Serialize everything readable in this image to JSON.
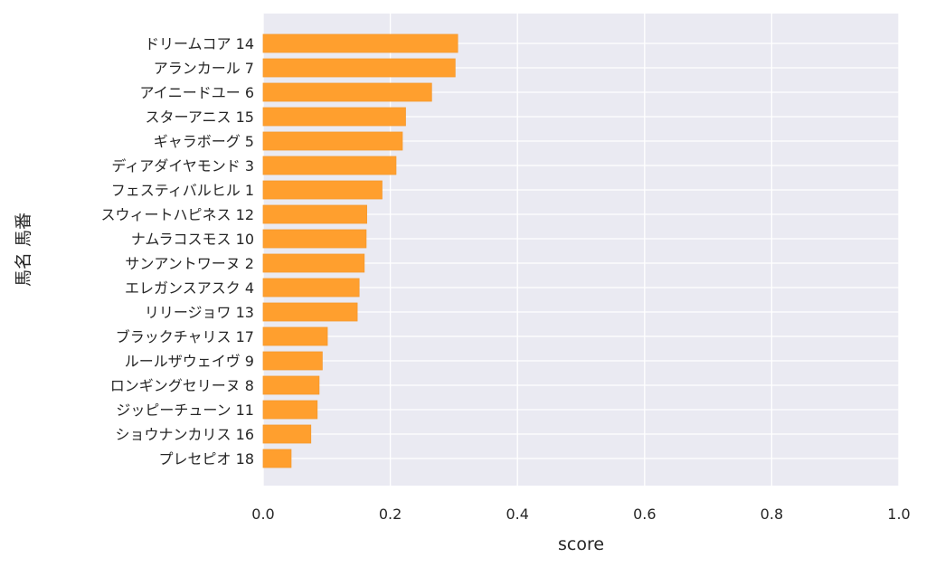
{
  "chart_data": {
    "type": "bar",
    "orientation": "horizontal",
    "categories": [
      "ドリームコア 14",
      "アランカール 7",
      "アイニードユー 6",
      "スターアニス 15",
      "ギャラボーグ 5",
      "ディアダイヤモンド 3",
      "フェスティバルヒル 1",
      "スウィートハピネス 12",
      "ナムラコスモス 10",
      "サンアントワーヌ 2",
      "エレガンスアスク 4",
      "リリージョワ 13",
      "ブラックチャリス 17",
      "ルールザウェイヴ 9",
      "ロンギングセリーヌ 8",
      "ジッピーチューン 11",
      "ショウナンカリス 16",
      "プレセピオ 18"
    ],
    "values": [
      0.306,
      0.302,
      0.265,
      0.224,
      0.219,
      0.209,
      0.187,
      0.163,
      0.162,
      0.159,
      0.151,
      0.148,
      0.101,
      0.093,
      0.088,
      0.085,
      0.075,
      0.044
    ],
    "xlabel": "score",
    "ylabel": "馬名 馬番",
    "xlim": [
      0,
      1.0
    ],
    "xticks": [
      "0.0",
      "0.2",
      "0.4",
      "0.6",
      "0.8",
      "1.0"
    ],
    "grid": true,
    "colors": {
      "bar": "#FF9F2E",
      "bar_edge": "#F59A30",
      "plot_background": "#EAEAF2",
      "grid": "#FFFFFF",
      "text": "#262626"
    }
  }
}
